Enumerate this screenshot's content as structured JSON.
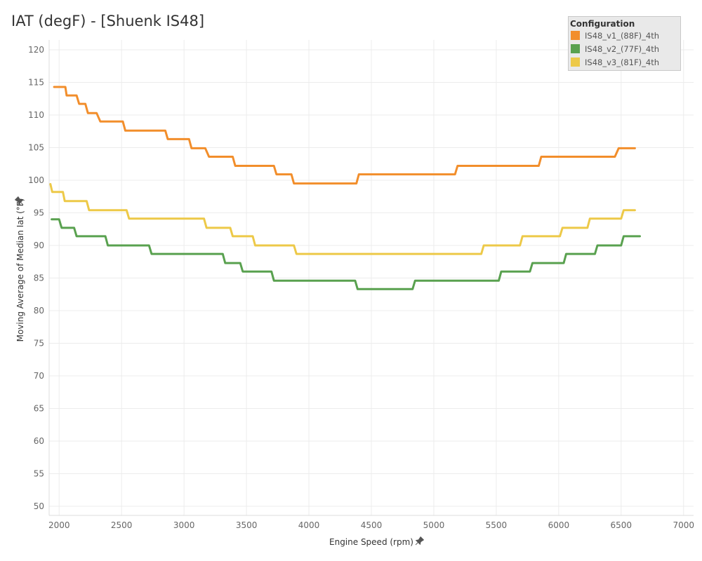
{
  "title": "IAT (degF) - [Shuenk IS48]",
  "legend": {
    "title": "Configuration",
    "items": [
      {
        "label": "IS48_v1_(88F)_4th",
        "color": "#f28e2b"
      },
      {
        "label": "IS48_v2_(77F)_4th",
        "color": "#59a14f"
      },
      {
        "label": "IS48_v3_(81F)_4th",
        "color": "#edc948"
      }
    ]
  },
  "icons": {
    "pin": "pin-icon"
  },
  "chart_data": {
    "type": "line",
    "xlabel": "Engine Speed (rpm)",
    "ylabel": "Moving Average of Median Iat (°F)",
    "xlim": [
      1920,
      7080
    ],
    "ylim": [
      48.6,
      121.5
    ],
    "xticks": [
      2000,
      2500,
      3000,
      3500,
      4000,
      4500,
      5000,
      5500,
      6000,
      6500,
      7000
    ],
    "yticks": [
      50,
      55,
      60,
      65,
      70,
      75,
      80,
      85,
      90,
      95,
      100,
      105,
      110,
      115,
      120
    ],
    "grid": true,
    "series": [
      {
        "name": "IS48_v1_(88F)_4th",
        "color": "#f28e2b",
        "points": [
          [
            1960,
            114.3
          ],
          [
            2050,
            114.3
          ],
          [
            2060,
            113.0
          ],
          [
            2140,
            113.0
          ],
          [
            2160,
            111.7
          ],
          [
            2210,
            111.7
          ],
          [
            2230,
            110.3
          ],
          [
            2300,
            110.3
          ],
          [
            2330,
            109.0
          ],
          [
            2510,
            109.0
          ],
          [
            2530,
            107.6
          ],
          [
            2850,
            107.6
          ],
          [
            2870,
            106.3
          ],
          [
            3040,
            106.3
          ],
          [
            3060,
            104.9
          ],
          [
            3170,
            104.9
          ],
          [
            3200,
            103.6
          ],
          [
            3390,
            103.6
          ],
          [
            3410,
            102.2
          ],
          [
            3720,
            102.2
          ],
          [
            3740,
            100.9
          ],
          [
            3860,
            100.9
          ],
          [
            3880,
            99.5
          ],
          [
            4380,
            99.5
          ],
          [
            4400,
            100.9
          ],
          [
            5170,
            100.9
          ],
          [
            5190,
            102.2
          ],
          [
            5840,
            102.2
          ],
          [
            5860,
            103.6
          ],
          [
            6450,
            103.6
          ],
          [
            6480,
            104.9
          ],
          [
            6610,
            104.9
          ]
        ]
      },
      {
        "name": "IS48_v2_(77F)_4th",
        "color": "#59a14f",
        "points": [
          [
            1940,
            94.0
          ],
          [
            2000,
            94.0
          ],
          [
            2020,
            92.7
          ],
          [
            2120,
            92.7
          ],
          [
            2140,
            91.4
          ],
          [
            2370,
            91.4
          ],
          [
            2390,
            90.0
          ],
          [
            2720,
            90.0
          ],
          [
            2740,
            88.7
          ],
          [
            3310,
            88.7
          ],
          [
            3330,
            87.3
          ],
          [
            3450,
            87.3
          ],
          [
            3470,
            86.0
          ],
          [
            3700,
            86.0
          ],
          [
            3720,
            84.6
          ],
          [
            4370,
            84.6
          ],
          [
            4390,
            83.3
          ],
          [
            4830,
            83.3
          ],
          [
            4850,
            84.6
          ],
          [
            5520,
            84.6
          ],
          [
            5540,
            86.0
          ],
          [
            5770,
            86.0
          ],
          [
            5790,
            87.3
          ],
          [
            6040,
            87.3
          ],
          [
            6060,
            88.7
          ],
          [
            6290,
            88.7
          ],
          [
            6310,
            90.0
          ],
          [
            6500,
            90.0
          ],
          [
            6520,
            91.4
          ],
          [
            6650,
            91.4
          ]
        ]
      },
      {
        "name": "IS48_v3_(81F)_4th",
        "color": "#edc948",
        "points": [
          [
            1930,
            99.4
          ],
          [
            1945,
            98.2
          ],
          [
            2030,
            98.2
          ],
          [
            2045,
            96.8
          ],
          [
            2220,
            96.8
          ],
          [
            2240,
            95.4
          ],
          [
            2540,
            95.4
          ],
          [
            2560,
            94.1
          ],
          [
            3160,
            94.1
          ],
          [
            3180,
            92.7
          ],
          [
            3370,
            92.7
          ],
          [
            3390,
            91.4
          ],
          [
            3550,
            91.4
          ],
          [
            3570,
            90.0
          ],
          [
            3880,
            90.0
          ],
          [
            3900,
            88.7
          ],
          [
            5380,
            88.7
          ],
          [
            5400,
            90.0
          ],
          [
            5690,
            90.0
          ],
          [
            5710,
            91.4
          ],
          [
            6010,
            91.4
          ],
          [
            6030,
            92.7
          ],
          [
            6230,
            92.7
          ],
          [
            6250,
            94.1
          ],
          [
            6500,
            94.1
          ],
          [
            6520,
            95.4
          ],
          [
            6610,
            95.4
          ]
        ]
      }
    ]
  }
}
